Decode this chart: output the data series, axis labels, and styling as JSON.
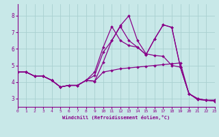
{
  "xlabel": "Windchill (Refroidissement éolien,°C)",
  "bg_color": "#c8e8e8",
  "grid_color": "#a8d0d0",
  "line_color": "#880088",
  "xlim": [
    0,
    23
  ],
  "ylim": [
    2.5,
    8.7
  ],
  "yticks": [
    3,
    4,
    5,
    6,
    7,
    8
  ],
  "xticks": [
    0,
    1,
    2,
    3,
    4,
    5,
    6,
    7,
    8,
    9,
    10,
    11,
    12,
    13,
    14,
    15,
    16,
    17,
    18,
    19,
    20,
    21,
    22,
    23
  ],
  "lines": [
    {
      "x": [
        0,
        1,
        2,
        3,
        4,
        5,
        6,
        7,
        8,
        9,
        10,
        11,
        12,
        13,
        14,
        15,
        16,
        17,
        18,
        19,
        20,
        21,
        22,
        23
      ],
      "y": [
        4.6,
        4.6,
        4.35,
        4.35,
        4.1,
        3.7,
        3.8,
        3.8,
        4.1,
        4.05,
        4.6,
        4.7,
        4.8,
        4.85,
        4.9,
        4.95,
        5.0,
        5.05,
        5.1,
        5.15,
        3.3,
        3.0,
        2.9,
        2.9
      ]
    },
    {
      "x": [
        0,
        1,
        2,
        3,
        4,
        5,
        6,
        7,
        8,
        9,
        10,
        11,
        12,
        13,
        14,
        15,
        16,
        17,
        18,
        19,
        20,
        21,
        22,
        23
      ],
      "y": [
        4.6,
        4.6,
        4.35,
        4.35,
        4.1,
        3.7,
        3.8,
        3.8,
        4.1,
        4.05,
        5.2,
        6.5,
        7.4,
        8.0,
        6.5,
        5.7,
        5.6,
        5.55,
        5.0,
        4.9,
        3.3,
        3.0,
        2.9,
        2.9
      ]
    },
    {
      "x": [
        0,
        1,
        2,
        3,
        4,
        5,
        6,
        7,
        8,
        9,
        10,
        11,
        12,
        13,
        14,
        15,
        16,
        17,
        18,
        19,
        20,
        21,
        22,
        23
      ],
      "y": [
        4.6,
        4.6,
        4.35,
        4.35,
        4.1,
        3.7,
        3.8,
        3.8,
        4.1,
        4.4,
        5.8,
        6.5,
        7.35,
        6.5,
        6.1,
        5.65,
        6.6,
        7.45,
        7.3,
        4.9,
        3.3,
        2.95,
        2.9,
        2.85
      ]
    },
    {
      "x": [
        0,
        1,
        2,
        3,
        4,
        5,
        6,
        7,
        8,
        9,
        10,
        11,
        12,
        13,
        14,
        15,
        16,
        17,
        18,
        19,
        20,
        21,
        22,
        23
      ],
      "y": [
        4.6,
        4.6,
        4.35,
        4.35,
        4.1,
        3.7,
        3.8,
        3.8,
        4.1,
        4.6,
        6.1,
        7.35,
        6.5,
        6.2,
        6.1,
        5.65,
        6.6,
        7.45,
        7.3,
        4.9,
        3.3,
        2.95,
        2.9,
        2.85
      ]
    }
  ]
}
